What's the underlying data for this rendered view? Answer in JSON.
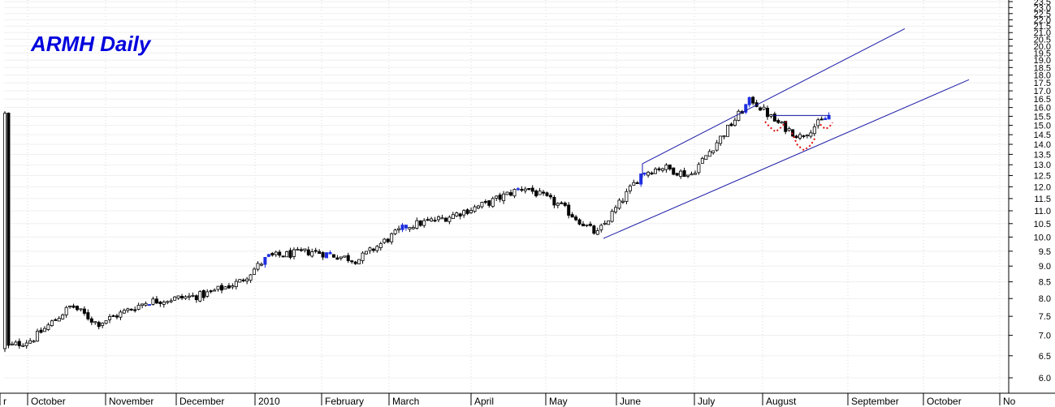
{
  "chart_data": {
    "type": "candlestick",
    "title": "ARMH Daily",
    "y_scale": "log",
    "ylim": [
      5.75,
      23.6
    ],
    "y_ticks": [
      "6.0",
      "6.5",
      "7.0",
      "7.5",
      "8.0",
      "8.5",
      "9.0",
      "9.5",
      "10.0",
      "10.5",
      "11.0",
      "11.5",
      "12.0",
      "12.5",
      "13.0",
      "13.5",
      "14.0",
      "14.5",
      "15.0",
      "15.5",
      "16.0",
      "16.5",
      "17.0",
      "17.5",
      "18.0",
      "18.5",
      "19.0",
      "19.5",
      "20.0",
      "20.5",
      "21.0",
      "21.5",
      "22.0",
      "22.5",
      "23.0",
      "23.5"
    ],
    "x_labels": [
      "r",
      "October",
      "November",
      "December",
      "2010",
      "February",
      "March",
      "April",
      "May",
      "June",
      "July",
      "August",
      "September",
      "October",
      "No"
    ],
    "grid": true,
    "colors": {
      "title": "#0000dd",
      "trendline": "#1a1aa8",
      "up_candle_fill": "#ffffff",
      "down_candle_fill": "#000000",
      "highlight_candle": "#1e2ee0",
      "pattern_dots": "#e01010",
      "grid": "#d9d9d9"
    },
    "price_anchors": [
      {
        "date": "late September",
        "close": 6.7
      },
      {
        "date": "early October",
        "close": 6.9
      },
      {
        "date": "mid October",
        "close": 7.8
      },
      {
        "date": "early November",
        "close": 7.3
      },
      {
        "date": "late November",
        "close": 7.9
      },
      {
        "date": "mid December",
        "close": 8.1
      },
      {
        "date": "late December",
        "close": 8.5
      },
      {
        "date": "early January",
        "close": 9.3
      },
      {
        "date": "late January",
        "close": 9.5
      },
      {
        "date": "mid February",
        "close": 9.2
      },
      {
        "date": "early March",
        "close": 10.4
      },
      {
        "date": "late March",
        "close": 10.7
      },
      {
        "date": "mid April",
        "close": 11.3
      },
      {
        "date": "late April",
        "close": 12.0
      },
      {
        "date": "early May",
        "close": 11.2
      },
      {
        "date": "mid May",
        "close": 10.1
      },
      {
        "date": "early June",
        "close": 12.6
      },
      {
        "date": "mid June",
        "close": 12.9
      },
      {
        "date": "late June",
        "close": 12.5
      },
      {
        "date": "mid July",
        "close": 14.5
      },
      {
        "date": "late July",
        "close": 16.5
      },
      {
        "date": "early August",
        "close": 15.2
      },
      {
        "date": "mid August",
        "close": 14.4
      },
      {
        "date": "late August",
        "close": 15.6
      }
    ],
    "annotations": {
      "channel": "rising trend channel drawn from May low (~9.9) and June high (~13.0)",
      "pattern": "inverse head-and-shoulders with neckline near 15.5"
    }
  }
}
